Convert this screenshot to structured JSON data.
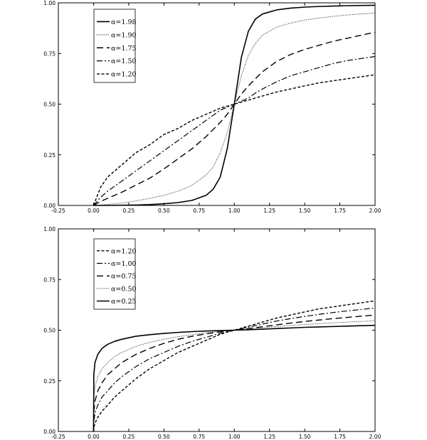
{
  "chart_data": [
    {
      "type": "line",
      "title": "",
      "xlabel": "",
      "ylabel": "",
      "xlim": [
        -0.25,
        2.0
      ],
      "ylim": [
        0.0,
        1.0
      ],
      "grid": false,
      "legend_position": "top-left",
      "x_ticks": [
        "-0.25",
        "0.00",
        "0.25",
        "0.50",
        "0.75",
        "1.00",
        "1.25",
        "1.50",
        "1.75",
        "2.00"
      ],
      "y_ticks": [
        "0.00",
        "0.25",
        "0.50",
        "0.75",
        "1.00"
      ],
      "x": [
        0,
        0.05,
        0.1,
        0.2,
        0.3,
        0.4,
        0.5,
        0.6,
        0.7,
        0.8,
        0.85,
        0.9,
        0.95,
        1.0,
        1.05,
        1.1,
        1.15,
        1.2,
        1.3,
        1.4,
        1.5,
        1.6,
        1.7,
        1.8,
        1.9,
        2.0
      ],
      "series": [
        {
          "name": "α=1.98",
          "style": "solid",
          "values": [
            0.0,
            0.0,
            0.0,
            0.001,
            0.002,
            0.004,
            0.008,
            0.014,
            0.025,
            0.05,
            0.08,
            0.14,
            0.28,
            0.5,
            0.73,
            0.86,
            0.92,
            0.945,
            0.965,
            0.974,
            0.979,
            0.982,
            0.984,
            0.986,
            0.987,
            0.988
          ]
        },
        {
          "name": "α=1.90",
          "style": "dotted",
          "values": [
            0.0,
            0.002,
            0.005,
            0.012,
            0.022,
            0.035,
            0.05,
            0.07,
            0.1,
            0.15,
            0.19,
            0.26,
            0.36,
            0.5,
            0.64,
            0.74,
            0.8,
            0.84,
            0.88,
            0.9,
            0.915,
            0.925,
            0.933,
            0.94,
            0.945,
            0.95
          ]
        },
        {
          "name": "α=1.75",
          "style": "longdash",
          "values": [
            0.0,
            0.02,
            0.035,
            0.065,
            0.1,
            0.135,
            0.18,
            0.23,
            0.28,
            0.34,
            0.375,
            0.41,
            0.45,
            0.5,
            0.55,
            0.59,
            0.625,
            0.66,
            0.71,
            0.745,
            0.77,
            0.79,
            0.81,
            0.825,
            0.84,
            0.855
          ]
        },
        {
          "name": "α=1.50",
          "style": "dashdot",
          "values": [
            0.0,
            0.04,
            0.07,
            0.12,
            0.17,
            0.22,
            0.27,
            0.32,
            0.37,
            0.42,
            0.445,
            0.47,
            0.485,
            0.5,
            0.515,
            0.53,
            0.555,
            0.575,
            0.61,
            0.64,
            0.66,
            0.68,
            0.7,
            0.715,
            0.725,
            0.735
          ]
        },
        {
          "name": "α=1.20",
          "style": "shortdash",
          "values": [
            0.0,
            0.09,
            0.14,
            0.2,
            0.26,
            0.3,
            0.35,
            0.38,
            0.42,
            0.45,
            0.465,
            0.48,
            0.49,
            0.5,
            0.51,
            0.52,
            0.53,
            0.54,
            0.56,
            0.575,
            0.59,
            0.605,
            0.615,
            0.625,
            0.635,
            0.645
          ]
        }
      ]
    },
    {
      "type": "line",
      "title": "",
      "xlabel": "",
      "ylabel": "",
      "xlim": [
        -0.25,
        2.0
      ],
      "ylim": [
        0.0,
        1.0
      ],
      "grid": false,
      "legend_position": "top-left",
      "x_ticks": [
        "-0.25",
        "0.00",
        "0.25",
        "0.50",
        "0.75",
        "1.00",
        "1.25",
        "1.50",
        "1.75",
        "2.00"
      ],
      "y_ticks": [
        "0.00",
        "0.25",
        "0.50",
        "0.75",
        "1.00"
      ],
      "x": [
        0,
        0.002,
        0.01,
        0.03,
        0.06,
        0.1,
        0.15,
        0.2,
        0.3,
        0.4,
        0.5,
        0.6,
        0.7,
        0.8,
        0.9,
        1.0,
        1.1,
        1.2,
        1.3,
        1.4,
        1.5,
        1.6,
        1.7,
        1.8,
        1.9,
        2.0
      ],
      "series": [
        {
          "name": "α=1.20",
          "style": "shortdash",
          "values": [
            0.0,
            0.02,
            0.04,
            0.07,
            0.1,
            0.13,
            0.17,
            0.2,
            0.26,
            0.31,
            0.35,
            0.39,
            0.42,
            0.45,
            0.48,
            0.5,
            0.52,
            0.54,
            0.56,
            0.575,
            0.59,
            0.605,
            0.615,
            0.625,
            0.635,
            0.645
          ]
        },
        {
          "name": "α=1.00",
          "style": "dashdot",
          "values": [
            0.0,
            0.05,
            0.09,
            0.13,
            0.17,
            0.2,
            0.24,
            0.27,
            0.32,
            0.36,
            0.39,
            0.42,
            0.445,
            0.465,
            0.485,
            0.5,
            0.515,
            0.53,
            0.545,
            0.557,
            0.568,
            0.578,
            0.587,
            0.595,
            0.602,
            0.61
          ]
        },
        {
          "name": "α=0.75",
          "style": "longdash",
          "values": [
            0.0,
            0.1,
            0.15,
            0.2,
            0.24,
            0.28,
            0.31,
            0.34,
            0.38,
            0.41,
            0.435,
            0.455,
            0.47,
            0.482,
            0.492,
            0.5,
            0.508,
            0.517,
            0.526,
            0.535,
            0.543,
            0.55,
            0.557,
            0.563,
            0.569,
            0.575
          ]
        },
        {
          "name": "α=0.50",
          "style": "dotted",
          "values": [
            0.0,
            0.17,
            0.22,
            0.27,
            0.31,
            0.34,
            0.37,
            0.39,
            0.42,
            0.44,
            0.455,
            0.468,
            0.478,
            0.487,
            0.494,
            0.5,
            0.506,
            0.512,
            0.518,
            0.523,
            0.528,
            0.532,
            0.536,
            0.54,
            0.543,
            0.546
          ]
        },
        {
          "name": "α=0.25",
          "style": "solid",
          "values": [
            0.0,
            0.28,
            0.34,
            0.38,
            0.41,
            0.43,
            0.445,
            0.455,
            0.47,
            0.478,
            0.484,
            0.489,
            0.493,
            0.496,
            0.498,
            0.5,
            0.502,
            0.505,
            0.508,
            0.511,
            0.514,
            0.516,
            0.518,
            0.52,
            0.522,
            0.524
          ]
        }
      ]
    }
  ]
}
